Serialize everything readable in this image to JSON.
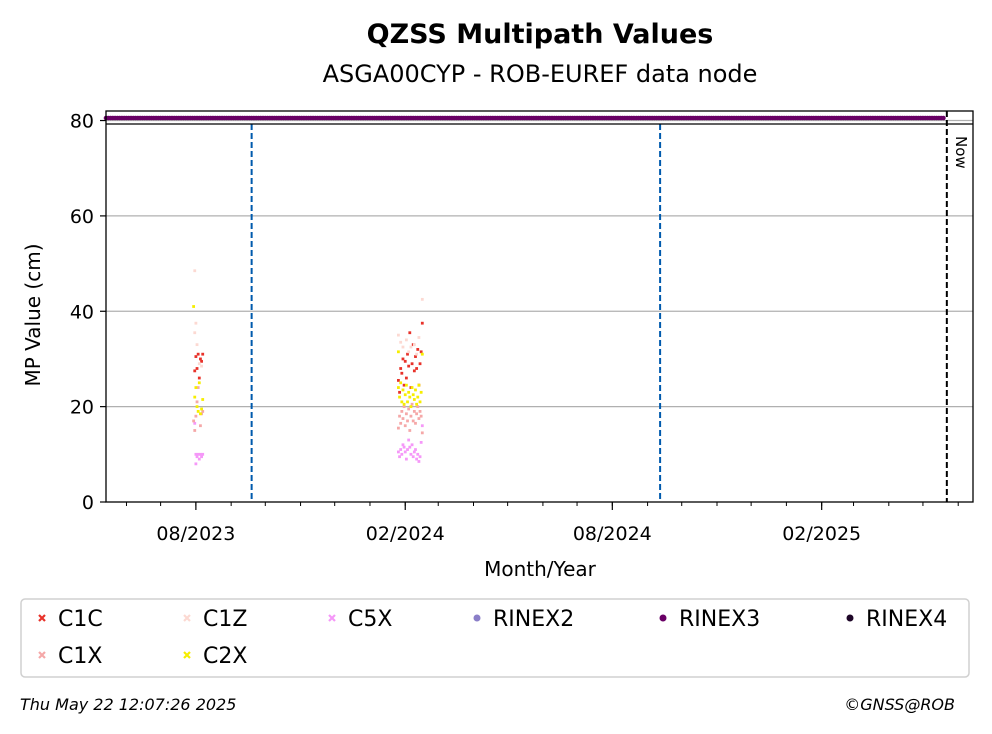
{
  "chart_data": {
    "type": "scatter",
    "title": "QZSS Multipath Values",
    "subtitle": "ASGA00CYP - ROB-EUREF data node",
    "xlabel": "Month/Year",
    "ylabel": "MP Value (cm)",
    "ylim": [
      0,
      82
    ],
    "xlim": [
      "2023-05-14",
      "2025-06-14"
    ],
    "x_ticks": [
      {
        "date": "2023-08-01",
        "label": "08/2023"
      },
      {
        "date": "2024-02-01",
        "label": "02/2024"
      },
      {
        "date": "2024-08-01",
        "label": "08/2024"
      },
      {
        "date": "2025-02-01",
        "label": "02/2025"
      }
    ],
    "y_ticks": [
      0,
      20,
      40,
      60,
      80
    ],
    "grid": "horizontal",
    "now_label": "Now",
    "now_date": "2025-05-22",
    "vertical_events": [
      "2023-09-19",
      "2024-09-12"
    ],
    "rinex_band": {
      "series": "RINEX3",
      "y": 81.5,
      "start": "2023-05-14",
      "end": "2025-05-19"
    },
    "legend": [
      "C1C",
      "C1Z",
      "C5X",
      "RINEX2",
      "RINEX3",
      "RINEX4",
      "C1X",
      "C2X"
    ],
    "colors": {
      "C1C": "#e8322a",
      "C1Z": "#fcd9d2",
      "C5X": "#f598f8",
      "RINEX2": "#8a7ec8",
      "RINEX3": "#690065",
      "RINEX4": "#1e0628",
      "C1X": "#f5a8a8",
      "C2X": "#f6ee00",
      "event_line": "#005aad",
      "grid": "#b0b0b0"
    },
    "series": [
      {
        "name": "C1C",
        "points": [
          [
            "2023-07-31",
            27.5
          ],
          [
            "2023-08-01",
            30.5
          ],
          [
            "2023-08-02",
            28.0
          ],
          [
            "2023-08-03",
            31.0
          ],
          [
            "2023-08-04",
            26.0
          ],
          [
            "2023-08-05",
            30.0
          ],
          [
            "2023-08-06",
            29.5
          ],
          [
            "2023-08-07",
            31.0
          ],
          [
            "2024-01-26",
            25.5
          ],
          [
            "2024-01-27",
            23.0
          ],
          [
            "2024-01-28",
            28.0
          ],
          [
            "2024-01-29",
            27.0
          ],
          [
            "2024-01-30",
            30.0
          ],
          [
            "2024-01-31",
            24.5
          ],
          [
            "2024-02-01",
            29.5
          ],
          [
            "2024-02-02",
            26.0
          ],
          [
            "2024-02-03",
            31.0
          ],
          [
            "2024-02-04",
            28.5
          ],
          [
            "2024-02-05",
            35.5
          ],
          [
            "2024-02-06",
            24.0
          ],
          [
            "2024-02-07",
            29.0
          ],
          [
            "2024-02-08",
            33.0
          ],
          [
            "2024-02-09",
            27.5
          ],
          [
            "2024-02-10",
            30.5
          ],
          [
            "2024-02-11",
            28.0
          ],
          [
            "2024-02-12",
            32.0
          ],
          [
            "2024-02-13",
            24.5
          ],
          [
            "2024-02-14",
            29.0
          ],
          [
            "2024-02-15",
            31.5
          ],
          [
            "2024-02-16",
            37.5
          ]
        ]
      },
      {
        "name": "C1Z",
        "points": [
          [
            "2023-07-31",
            48.5
          ],
          [
            "2023-07-31",
            35.5
          ],
          [
            "2023-08-01",
            37.5
          ],
          [
            "2023-08-02",
            33.0
          ],
          [
            "2023-08-04",
            29.0
          ],
          [
            "2023-08-06",
            28.5
          ],
          [
            "2024-01-26",
            35.0
          ],
          [
            "2024-01-28",
            33.5
          ],
          [
            "2024-01-30",
            32.5
          ],
          [
            "2024-02-02",
            34.0
          ],
          [
            "2024-02-04",
            31.5
          ],
          [
            "2024-02-06",
            32.5
          ],
          [
            "2024-02-09",
            33.0
          ],
          [
            "2024-02-11",
            31.0
          ],
          [
            "2024-02-13",
            34.5
          ],
          [
            "2024-02-16",
            42.5
          ]
        ]
      },
      {
        "name": "C5X",
        "points": [
          [
            "2023-07-31",
            16.5
          ],
          [
            "2023-08-01",
            10.0
          ],
          [
            "2023-08-01",
            8.0
          ],
          [
            "2023-08-02",
            9.5
          ],
          [
            "2023-08-03",
            10.0
          ],
          [
            "2023-08-04",
            9.0
          ],
          [
            "2023-08-05",
            10.0
          ],
          [
            "2023-08-06",
            9.5
          ],
          [
            "2023-08-07",
            10.0
          ],
          [
            "2024-01-26",
            10.5
          ],
          [
            "2024-01-27",
            9.5
          ],
          [
            "2024-01-28",
            11.0
          ],
          [
            "2024-01-29",
            10.0
          ],
          [
            "2024-01-30",
            12.0
          ],
          [
            "2024-01-31",
            11.5
          ],
          [
            "2024-02-01",
            10.5
          ],
          [
            "2024-02-02",
            9.0
          ],
          [
            "2024-02-03",
            11.0
          ],
          [
            "2024-02-04",
            13.0
          ],
          [
            "2024-02-05",
            11.5
          ],
          [
            "2024-02-06",
            10.0
          ],
          [
            "2024-02-07",
            12.0
          ],
          [
            "2024-02-08",
            9.5
          ],
          [
            "2024-02-09",
            10.5
          ],
          [
            "2024-02-10",
            11.0
          ],
          [
            "2024-02-11",
            9.0
          ],
          [
            "2024-02-12",
            10.0
          ],
          [
            "2024-02-13",
            8.5
          ],
          [
            "2024-02-14",
            9.5
          ],
          [
            "2024-02-15",
            12.5
          ],
          [
            "2024-02-16",
            16.0
          ]
        ]
      },
      {
        "name": "C1X",
        "points": [
          [
            "2023-07-30",
            17.0
          ],
          [
            "2023-07-31",
            15.0
          ],
          [
            "2023-08-01",
            18.0
          ],
          [
            "2023-08-02",
            21.0
          ],
          [
            "2023-08-03",
            24.0
          ],
          [
            "2023-08-05",
            16.0
          ],
          [
            "2023-08-06",
            18.5
          ],
          [
            "2023-08-07",
            19.0
          ],
          [
            "2024-01-26",
            15.5
          ],
          [
            "2024-01-27",
            18.0
          ],
          [
            "2024-01-28",
            16.5
          ],
          [
            "2024-01-29",
            19.0
          ],
          [
            "2024-01-30",
            17.5
          ],
          [
            "2024-01-31",
            20.0
          ],
          [
            "2024-02-01",
            16.0
          ],
          [
            "2024-02-02",
            18.5
          ],
          [
            "2024-02-03",
            17.0
          ],
          [
            "2024-02-04",
            19.5
          ],
          [
            "2024-02-05",
            15.0
          ],
          [
            "2024-02-06",
            18.0
          ],
          [
            "2024-02-07",
            20.5
          ],
          [
            "2024-02-08",
            17.0
          ],
          [
            "2024-02-09",
            19.0
          ],
          [
            "2024-02-10",
            16.5
          ],
          [
            "2024-02-11",
            18.5
          ],
          [
            "2024-02-12",
            20.0
          ],
          [
            "2024-02-13",
            17.5
          ],
          [
            "2024-02-14",
            19.0
          ],
          [
            "2024-02-15",
            18.0
          ],
          [
            "2024-02-16",
            14.5
          ]
        ]
      },
      {
        "name": "C2X",
        "points": [
          [
            "2023-07-30",
            41.0
          ],
          [
            "2023-07-31",
            22.0
          ],
          [
            "2023-08-01",
            24.0
          ],
          [
            "2023-08-02",
            20.0
          ],
          [
            "2023-08-03",
            19.0
          ],
          [
            "2023-08-04",
            25.0
          ],
          [
            "2023-08-05",
            18.5
          ],
          [
            "2023-08-06",
            19.5
          ],
          [
            "2023-08-07",
            21.5
          ],
          [
            "2024-01-26",
            31.5
          ],
          [
            "2024-01-26",
            24.0
          ],
          [
            "2024-01-27",
            22.0
          ],
          [
            "2024-01-28",
            25.0
          ],
          [
            "2024-01-29",
            21.0
          ],
          [
            "2024-01-30",
            23.5
          ],
          [
            "2024-01-31",
            20.5
          ],
          [
            "2024-02-01",
            22.5
          ],
          [
            "2024-02-02",
            24.5
          ],
          [
            "2024-02-03",
            21.0
          ],
          [
            "2024-02-04",
            23.0
          ],
          [
            "2024-02-05",
            22.0
          ],
          [
            "2024-02-06",
            20.0
          ],
          [
            "2024-02-07",
            24.0
          ],
          [
            "2024-02-08",
            22.5
          ],
          [
            "2024-02-09",
            21.5
          ],
          [
            "2024-02-10",
            23.5
          ],
          [
            "2024-02-11",
            20.5
          ],
          [
            "2024-02-12",
            22.0
          ],
          [
            "2024-02-13",
            24.5
          ],
          [
            "2024-02-14",
            21.0
          ],
          [
            "2024-02-15",
            23.0
          ],
          [
            "2024-02-16",
            31.0
          ]
        ]
      }
    ]
  },
  "footer": {
    "timestamp": "Thu May 22 12:07:26 2025",
    "credit": "©GNSS@ROB"
  }
}
